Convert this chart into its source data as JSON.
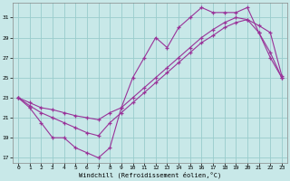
{
  "bg_color": "#c8e8e8",
  "line_color": "#993399",
  "grid_color": "#99cccc",
  "xlabel": "Windchill (Refroidissement éolien,°C)",
  "xlim": [
    -0.5,
    23.5
  ],
  "ylim": [
    16.5,
    32.5
  ],
  "yticks": [
    17,
    19,
    21,
    23,
    25,
    27,
    29,
    31
  ],
  "xticks": [
    0,
    1,
    2,
    3,
    4,
    5,
    6,
    7,
    8,
    9,
    10,
    11,
    12,
    13,
    14,
    15,
    16,
    17,
    18,
    19,
    20,
    21,
    22,
    23
  ],
  "line1_x": [
    0,
    1,
    2,
    3,
    4,
    5,
    6,
    7,
    8,
    9,
    10,
    11,
    12,
    13,
    14,
    15,
    16,
    17,
    18,
    19,
    20,
    21,
    22,
    23
  ],
  "line1_y": [
    23.0,
    22.0,
    20.5,
    19.0,
    19.0,
    18.0,
    17.5,
    17.0,
    18.0,
    22.0,
    25.0,
    27.0,
    29.0,
    28.0,
    30.0,
    31.0,
    32.0,
    31.5,
    31.5,
    31.5,
    32.0,
    29.5,
    27.0,
    25.0
  ],
  "line2_x": [
    0,
    1,
    2,
    3,
    4,
    5,
    6,
    7,
    8,
    9,
    10,
    11,
    12,
    13,
    14,
    15,
    16,
    17,
    18,
    19,
    20,
    21,
    22,
    23
  ],
  "line2_y": [
    23.0,
    22.2,
    21.5,
    21.0,
    20.5,
    20.0,
    19.5,
    19.2,
    20.5,
    21.5,
    22.5,
    23.5,
    24.5,
    25.5,
    26.5,
    27.5,
    28.5,
    29.2,
    30.0,
    30.5,
    30.8,
    29.5,
    27.5,
    25.0
  ],
  "line3_x": [
    0,
    1,
    2,
    3,
    4,
    5,
    6,
    7,
    8,
    9,
    10,
    11,
    12,
    13,
    14,
    15,
    16,
    17,
    18,
    19,
    20,
    21,
    22,
    23
  ],
  "line3_y": [
    23.0,
    22.5,
    22.0,
    21.8,
    21.5,
    21.2,
    21.0,
    20.8,
    21.5,
    22.0,
    23.0,
    24.0,
    25.0,
    26.0,
    27.0,
    28.0,
    29.0,
    29.8,
    30.5,
    31.0,
    30.8,
    30.2,
    29.5,
    25.2
  ]
}
